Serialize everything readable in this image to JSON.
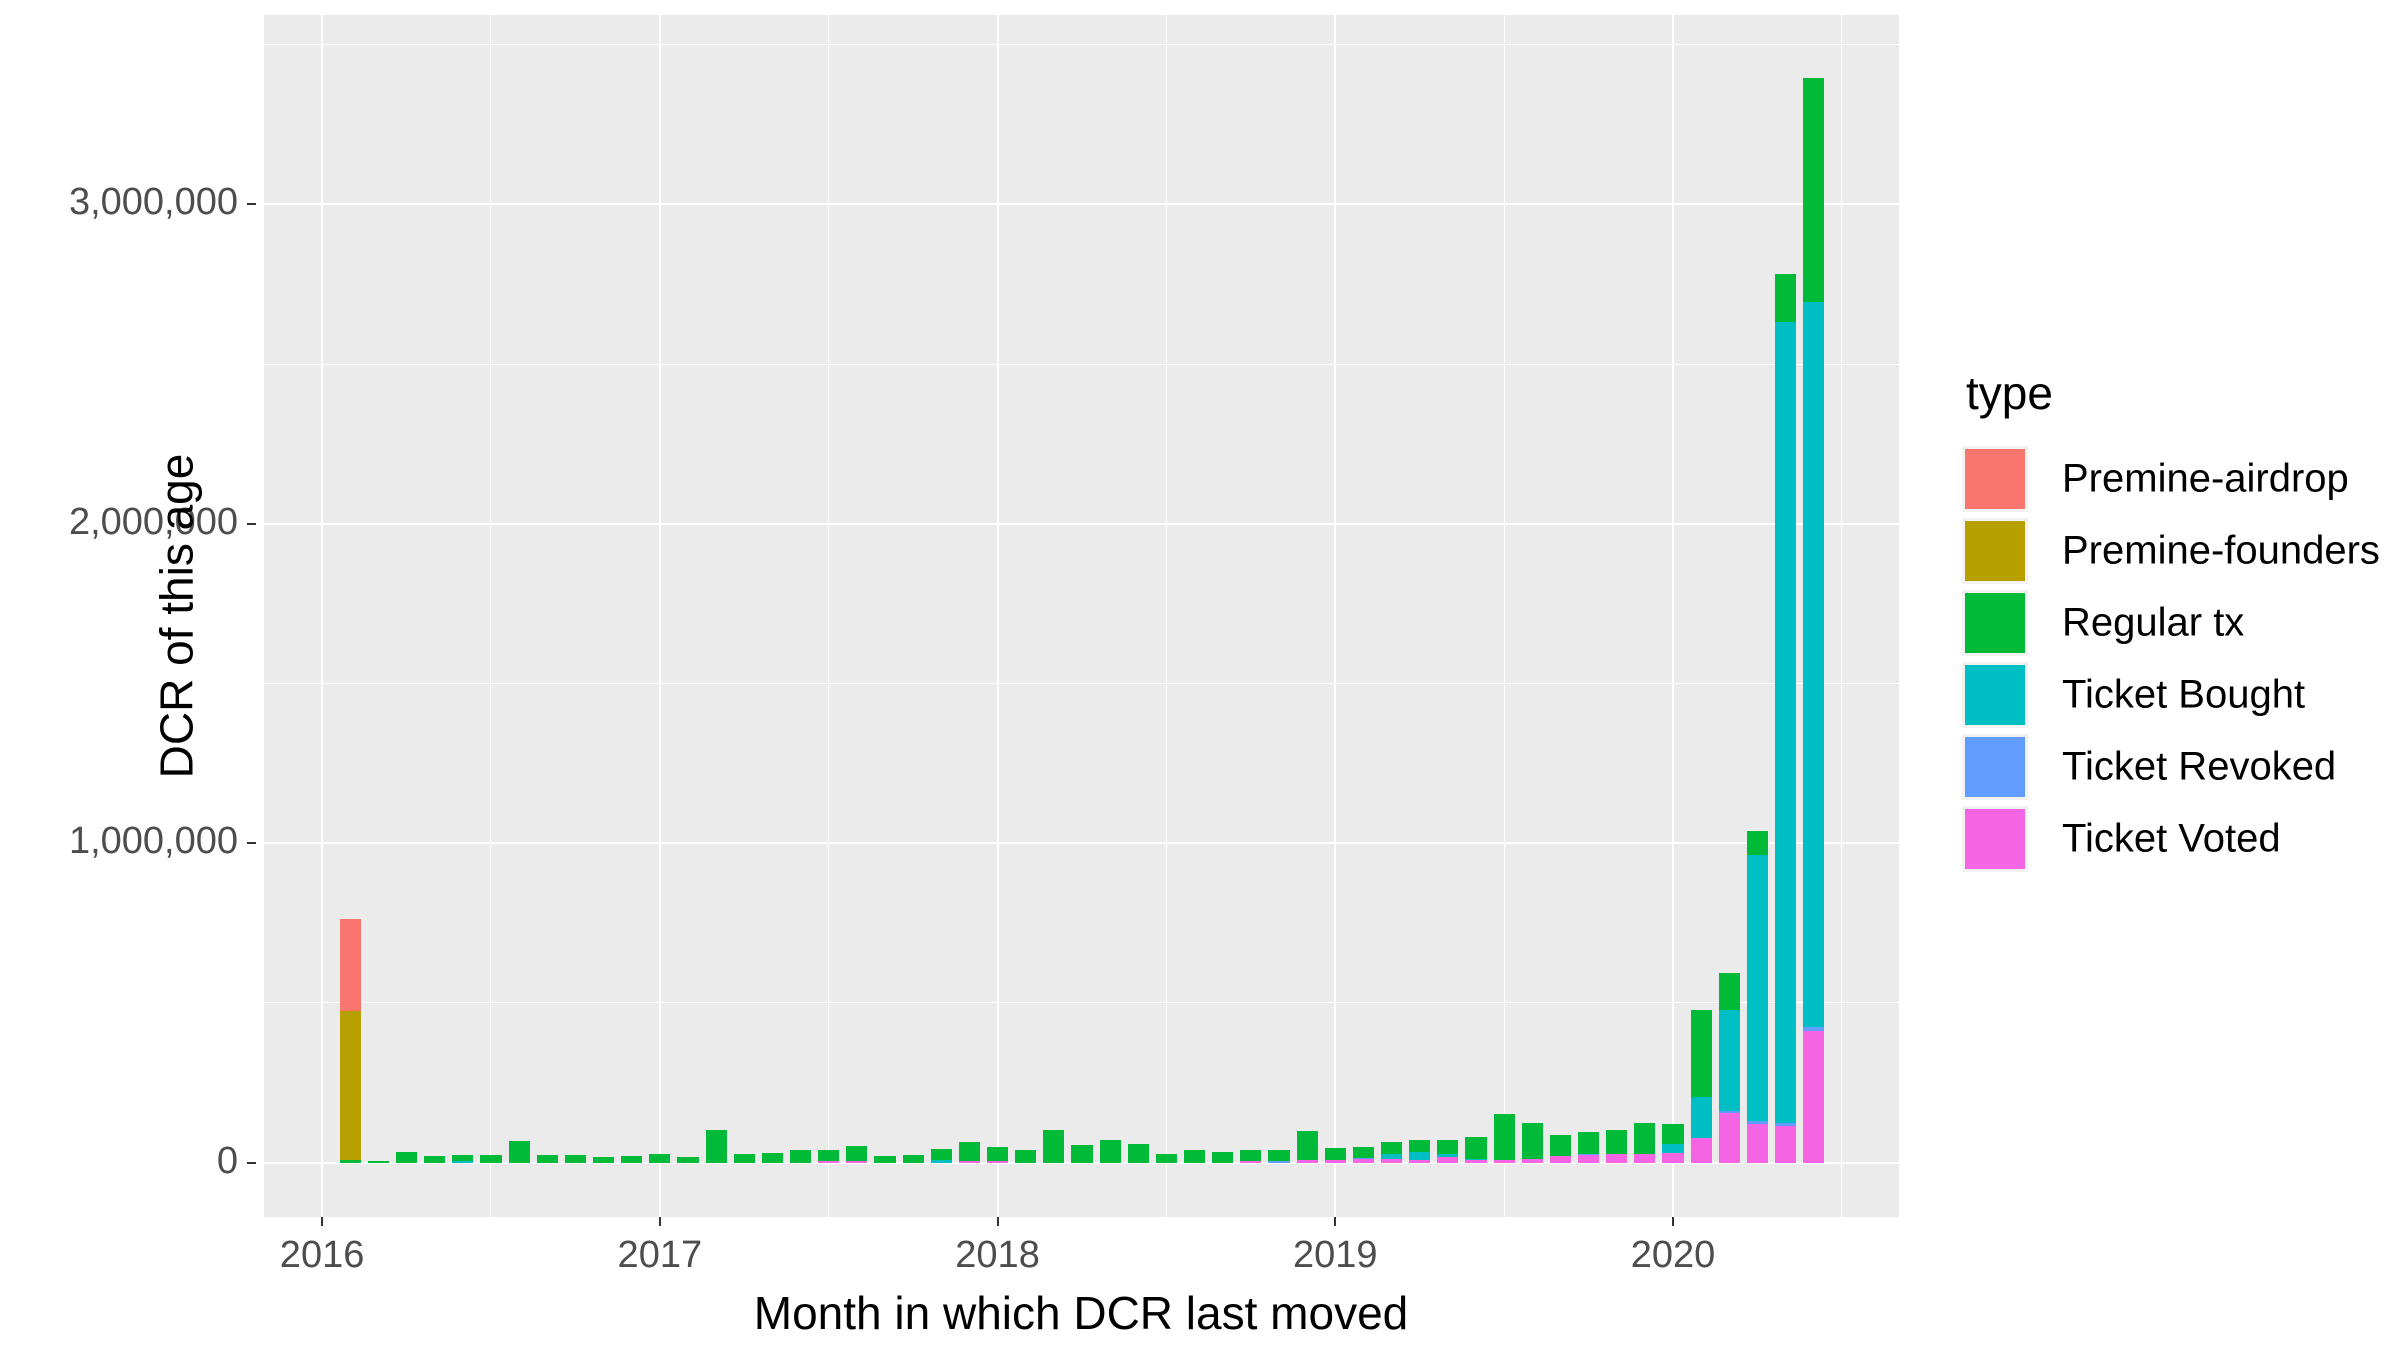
{
  "chart_data": {
    "type": "bar",
    "variant": "stacked-monthly",
    "title": "",
    "xlabel": "Month in which DCR last moved",
    "ylabel": "DCR of this age",
    "legend_title": "type",
    "legend_position": "right",
    "grid": "on",
    "panel_background": "#EBEBEB",
    "gridline_color": "#ffffff",
    "axis_text_color": "#4D4D4D",
    "xlim": [
      2015.828,
      2020.669
    ],
    "ylim": [
      -170000,
      3593000
    ],
    "bar_width_months": 0.75,
    "x_ticks": [
      {
        "t": 2016,
        "label": "2016"
      },
      {
        "t": 2017,
        "label": "2017"
      },
      {
        "t": 2018,
        "label": "2018"
      },
      {
        "t": 2019,
        "label": "2019"
      },
      {
        "t": 2020,
        "label": "2020"
      }
    ],
    "x_minor": [
      2016.5,
      2017.5,
      2018.5,
      2019.5,
      2020.5
    ],
    "y_ticks": [
      {
        "v": 0,
        "label": "0"
      },
      {
        "v": 1000000,
        "label": "1,000,000"
      },
      {
        "v": 2000000,
        "label": "2,000,000"
      },
      {
        "v": 3000000,
        "label": "3,000,000"
      }
    ],
    "y_minor": [
      500000,
      1500000,
      2500000,
      3500000
    ],
    "colors": {
      "Premine-airdrop": "#F8766D",
      "Premine-founders": "#B79F00",
      "Regular tx": "#00BA38",
      "Ticket Bought": "#00BFC4",
      "Ticket Revoked": "#619CFF",
      "Ticket Voted": "#F564E3"
    },
    "stack_order": [
      "Ticket Voted",
      "Ticket Revoked",
      "Ticket Bought",
      "Regular tx",
      "Premine-founders",
      "Premine-airdrop"
    ],
    "legend": [
      {
        "label": "Premine-airdrop",
        "color": "#F8766D"
      },
      {
        "label": "Premine-founders",
        "color": "#B79F00"
      },
      {
        "label": "Regular tx",
        "color": "#00BA38"
      },
      {
        "label": "Ticket Bought",
        "color": "#00BFC4"
      },
      {
        "label": "Ticket Revoked",
        "color": "#619CFF"
      },
      {
        "label": "Ticket Voted",
        "color": "#F564E3"
      }
    ],
    "months": [
      {
        "m": "2016-02",
        "v": {
          "Regular tx": 9000,
          "Premine-founders": 465000,
          "Premine-airdrop": 290000
        }
      },
      {
        "m": "2016-03",
        "v": {
          "Regular tx": 4000
        }
      },
      {
        "m": "2016-04",
        "v": {
          "Regular tx": 34000
        }
      },
      {
        "m": "2016-05",
        "v": {
          "Regular tx": 22000
        }
      },
      {
        "m": "2016-06",
        "v": {
          "Ticket Bought": 6000,
          "Regular tx": 19000
        }
      },
      {
        "m": "2016-07",
        "v": {
          "Regular tx": 25000
        }
      },
      {
        "m": "2016-08",
        "v": {
          "Regular tx": 69000
        }
      },
      {
        "m": "2016-09",
        "v": {
          "Regular tx": 25000
        }
      },
      {
        "m": "2016-10",
        "v": {
          "Regular tx": 25000
        }
      },
      {
        "m": "2016-11",
        "v": {
          "Regular tx": 19000
        }
      },
      {
        "m": "2016-12",
        "v": {
          "Regular tx": 22000
        }
      },
      {
        "m": "2017-01",
        "v": {
          "Regular tx": 28000
        }
      },
      {
        "m": "2017-02",
        "v": {
          "Regular tx": 19000
        }
      },
      {
        "m": "2017-03",
        "v": {
          "Regular tx": 103000
        }
      },
      {
        "m": "2017-04",
        "v": {
          "Regular tx": 28000
        }
      },
      {
        "m": "2017-05",
        "v": {
          "Regular tx": 31000
        }
      },
      {
        "m": "2017-06",
        "v": {
          "Regular tx": 41000
        }
      },
      {
        "m": "2017-07",
        "v": {
          "Ticket Voted": 6000,
          "Regular tx": 35000
        }
      },
      {
        "m": "2017-08",
        "v": {
          "Ticket Voted": 5000,
          "Regular tx": 48000
        }
      },
      {
        "m": "2017-09",
        "v": {
          "Regular tx": 22000
        }
      },
      {
        "m": "2017-10",
        "v": {
          "Regular tx": 25000
        }
      },
      {
        "m": "2017-11",
        "v": {
          "Ticket Bought": 8000,
          "Regular tx": 36000
        }
      },
      {
        "m": "2017-12",
        "v": {
          "Ticket Voted": 6000,
          "Regular tx": 60000
        }
      },
      {
        "m": "2018-01",
        "v": {
          "Ticket Voted": 5000,
          "Regular tx": 45000
        }
      },
      {
        "m": "2018-02",
        "v": {
          "Regular tx": 41000
        }
      },
      {
        "m": "2018-03",
        "v": {
          "Regular tx": 103000
        }
      },
      {
        "m": "2018-04",
        "v": {
          "Regular tx": 56000
        }
      },
      {
        "m": "2018-05",
        "v": {
          "Regular tx": 72000
        }
      },
      {
        "m": "2018-06",
        "v": {
          "Regular tx": 59000
        }
      },
      {
        "m": "2018-07",
        "v": {
          "Regular tx": 28000
        }
      },
      {
        "m": "2018-08",
        "v": {
          "Regular tx": 41000
        }
      },
      {
        "m": "2018-09",
        "v": {
          "Regular tx": 34000
        }
      },
      {
        "m": "2018-10",
        "v": {
          "Ticket Voted": 4000,
          "Regular tx": 37000
        }
      },
      {
        "m": "2018-11",
        "v": {
          "Ticket Revoked": 6000,
          "Regular tx": 35000
        }
      },
      {
        "m": "2018-12",
        "v": {
          "Ticket Voted": 8000,
          "Regular tx": 92000
        }
      },
      {
        "m": "2019-01",
        "v": {
          "Ticket Voted": 8000,
          "Regular tx": 39000
        }
      },
      {
        "m": "2019-02",
        "v": {
          "Ticket Voted": 12000,
          "Ticket Revoked": 4000,
          "Regular tx": 34000
        }
      },
      {
        "m": "2019-03",
        "v": {
          "Ticket Voted": 12000,
          "Ticket Bought": 15000,
          "Regular tx": 39000
        }
      },
      {
        "m": "2019-04",
        "v": {
          "Ticket Voted": 10000,
          "Ticket Bought": 25000,
          "Regular tx": 37000
        }
      },
      {
        "m": "2019-05",
        "v": {
          "Ticket Voted": 17000,
          "Ticket Bought": 11000,
          "Regular tx": 42000
        }
      },
      {
        "m": "2019-06",
        "v": {
          "Ticket Voted": 8000,
          "Ticket Bought": 3000,
          "Regular tx": 68000
        }
      },
      {
        "m": "2019-07",
        "v": {
          "Ticket Voted": 7000,
          "Regular tx": 144000
        }
      },
      {
        "m": "2019-08",
        "v": {
          "Ticket Voted": 13000,
          "Regular tx": 112000
        }
      },
      {
        "m": "2019-09",
        "v": {
          "Ticket Voted": 22000,
          "Regular tx": 64000
        }
      },
      {
        "m": "2019-10",
        "v": {
          "Ticket Voted": 25000,
          "Ticket Revoked": 3000,
          "Regular tx": 68000
        }
      },
      {
        "m": "2019-11",
        "v": {
          "Ticket Voted": 28000,
          "Regular tx": 75000
        }
      },
      {
        "m": "2019-12",
        "v": {
          "Ticket Voted": 28000,
          "Regular tx": 97000
        }
      },
      {
        "m": "2020-01",
        "v": {
          "Ticket Voted": 30000,
          "Ticket Bought": 30000,
          "Regular tx": 62000
        }
      },
      {
        "m": "2020-02",
        "v": {
          "Ticket Voted": 77000,
          "Ticket Bought": 130000,
          "Regular tx": 270000
        }
      },
      {
        "m": "2020-03",
        "v": {
          "Ticket Voted": 157000,
          "Ticket Revoked": 6000,
          "Ticket Bought": 315000,
          "Regular tx": 116000
        }
      },
      {
        "m": "2020-04",
        "v": {
          "Ticket Voted": 122000,
          "Ticket Revoked": 9000,
          "Ticket Bought": 833000,
          "Regular tx": 73000
        }
      },
      {
        "m": "2020-05",
        "v": {
          "Ticket Voted": 116000,
          "Ticket Revoked": 8000,
          "Ticket Bought": 2509000,
          "Regular tx": 150000
        }
      },
      {
        "m": "2020-06",
        "v": {
          "Ticket Voted": 411000,
          "Ticket Revoked": 15000,
          "Ticket Bought": 2267000,
          "Regular tx": 704000
        }
      }
    ]
  }
}
